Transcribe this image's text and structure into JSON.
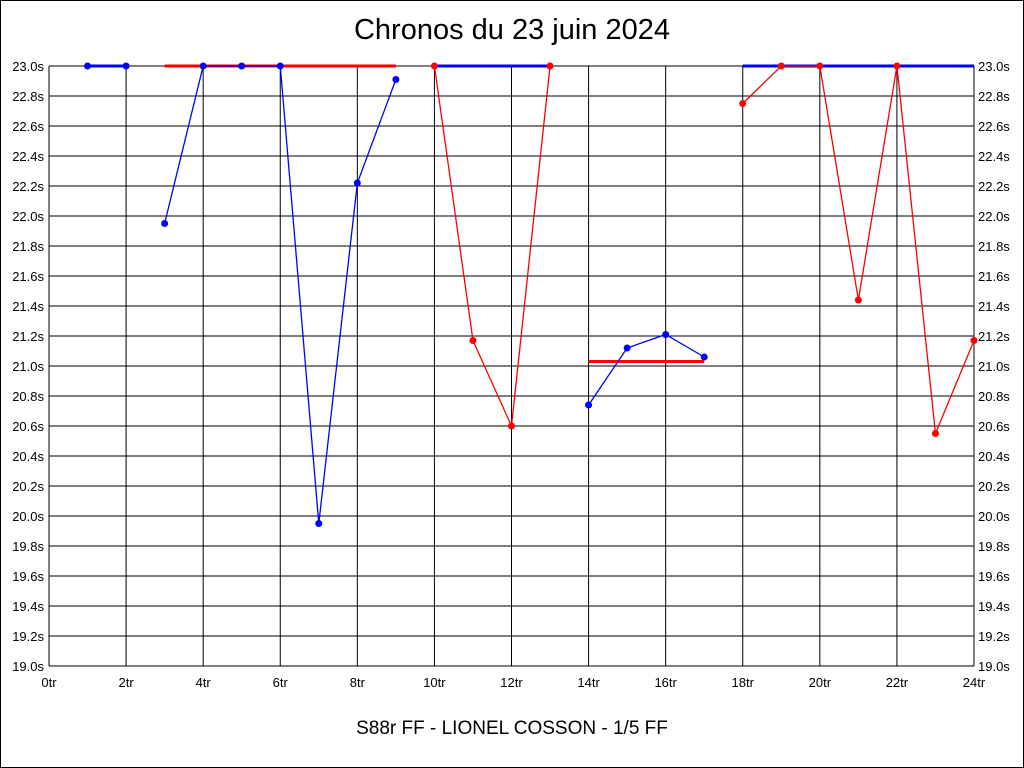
{
  "chart_data": {
    "type": "line",
    "title": "Chronos du 23 juin 2024",
    "subtitle": "S88r FF - LIONEL COSSON - 1/5 FF",
    "x_ticks": [
      "0tr",
      "2tr",
      "4tr",
      "6tr",
      "8tr",
      "10tr",
      "12tr",
      "14tr",
      "16tr",
      "18tr",
      "20tr",
      "22tr",
      "24tr"
    ],
    "y_ticks": [
      "19.0s",
      "19.2s",
      "19.4s",
      "19.6s",
      "19.8s",
      "20.0s",
      "20.2s",
      "20.4s",
      "20.6s",
      "20.8s",
      "21.0s",
      "21.2s",
      "21.4s",
      "21.6s",
      "21.8s",
      "22.0s",
      "22.2s",
      "22.4s",
      "22.6s",
      "22.8s",
      "23.0s"
    ],
    "xlim": [
      0,
      24
    ],
    "ylim": [
      19.0,
      23.0
    ],
    "grid": true,
    "colors": {
      "blue": "#0000ff",
      "red": "#ff0000"
    },
    "series": [
      {
        "color": "blue",
        "points": [
          [
            1,
            23.0
          ],
          [
            2,
            23.0
          ]
        ]
      },
      {
        "color": "blue",
        "points": [
          [
            3,
            21.95
          ],
          [
            4,
            23.0
          ],
          [
            5,
            23.0
          ],
          [
            6,
            23.0
          ],
          [
            7,
            19.95
          ],
          [
            8,
            22.22
          ],
          [
            9,
            22.91
          ]
        ]
      },
      {
        "color": "red",
        "points": [
          [
            10,
            23.0
          ],
          [
            11,
            21.17
          ],
          [
            12,
            20.6
          ],
          [
            13,
            23.0
          ]
        ]
      },
      {
        "color": "blue",
        "points": [
          [
            14,
            20.74
          ],
          [
            15,
            21.12
          ],
          [
            16,
            21.21
          ],
          [
            17,
            21.06
          ]
        ]
      },
      {
        "color": "red",
        "points": [
          [
            18,
            22.75
          ],
          [
            19,
            23.0
          ],
          [
            20,
            23.0
          ],
          [
            21,
            21.44
          ],
          [
            22,
            23.0
          ],
          [
            23,
            20.55
          ],
          [
            24,
            21.17
          ]
        ]
      }
    ],
    "reference_lines": [
      {
        "color": "blue",
        "x": [
          1,
          2
        ],
        "y": 23.0
      },
      {
        "color": "red",
        "x": [
          3,
          9
        ],
        "y": 23.0
      },
      {
        "color": "blue",
        "x": [
          10,
          13
        ],
        "y": 23.0
      },
      {
        "color": "red",
        "x": [
          14,
          17
        ],
        "y": 21.03
      },
      {
        "color": "blue",
        "x": [
          18,
          24
        ],
        "y": 23.0
      }
    ]
  }
}
